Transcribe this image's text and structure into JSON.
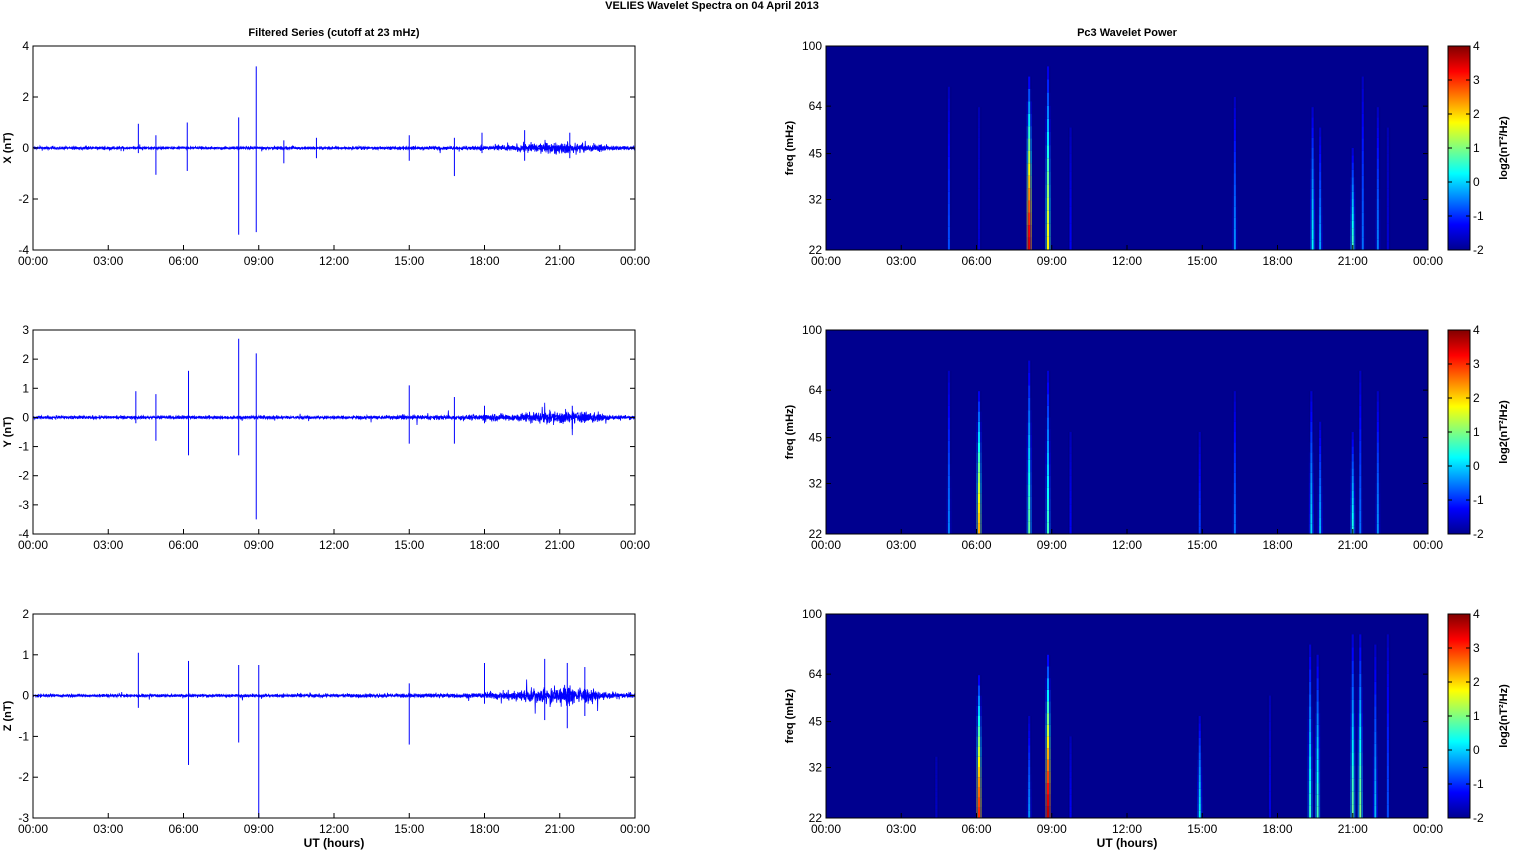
{
  "figure": {
    "title": "VELIES Wavelet Spectra on 04 April      2013",
    "left_column_title": "Filtered Series (cutoff at 23 mHz)",
    "right_column_title": "Pc3 Wavelet Power",
    "xlabel": "UT (hours)"
  },
  "colors": {
    "series": "#0000ff",
    "background_power": "#00008f",
    "axes": "#000000"
  },
  "chart_data": [
    {
      "type": "line",
      "title": "Filtered Series (cutoff at 23 mHz)",
      "ylabel": "X (nT)",
      "xlabel": "",
      "x_ticks": [
        "00:00",
        "03:00",
        "06:00",
        "09:00",
        "12:00",
        "15:00",
        "18:00",
        "21:00",
        "00:00"
      ],
      "xlim_hours": [
        0,
        24
      ],
      "ylim": [
        -4,
        4
      ],
      "y_ticks": [
        4,
        2,
        0,
        -2,
        -4
      ],
      "noise_profile": [
        [
          0,
          0.08
        ],
        [
          12,
          0.08
        ],
        [
          17,
          0.1
        ],
        [
          19.2,
          0.18
        ],
        [
          19.8,
          0.3
        ],
        [
          21,
          0.35
        ],
        [
          22.5,
          0.25
        ],
        [
          23,
          0.12
        ],
        [
          24,
          0.1
        ]
      ],
      "spikes": [
        [
          4.2,
          0.95,
          -0.2
        ],
        [
          4.9,
          0.5,
          -1.05
        ],
        [
          6.15,
          1.0,
          -0.9
        ],
        [
          8.2,
          1.2,
          -3.4
        ],
        [
          8.9,
          3.2,
          -3.3
        ],
        [
          10,
          0.3,
          -0.6
        ],
        [
          11.3,
          0.4,
          -0.4
        ],
        [
          15,
          0.5,
          -0.5
        ],
        [
          16.8,
          0.4,
          -1.1
        ],
        [
          17.9,
          0.6,
          -0.2
        ],
        [
          19.6,
          0.7,
          -0.5
        ],
        [
          21.4,
          0.6,
          -0.4
        ]
      ]
    },
    {
      "type": "line",
      "ylabel": "Y (nT)",
      "xlabel": "",
      "x_ticks": [
        "00:00",
        "03:00",
        "06:00",
        "09:00",
        "12:00",
        "15:00",
        "18:00",
        "21:00",
        "00:00"
      ],
      "xlim_hours": [
        0,
        24
      ],
      "ylim": [
        -4,
        3
      ],
      "y_ticks": [
        3,
        2,
        1,
        0,
        -1,
        -2,
        -3,
        -4
      ],
      "noise_profile": [
        [
          0,
          0.08
        ],
        [
          12,
          0.08
        ],
        [
          17,
          0.12
        ],
        [
          19.5,
          0.22
        ],
        [
          21,
          0.35
        ],
        [
          22.5,
          0.28
        ],
        [
          23,
          0.12
        ],
        [
          24,
          0.1
        ]
      ],
      "spikes": [
        [
          4.1,
          0.9,
          -0.2
        ],
        [
          4.9,
          0.8,
          -0.8
        ],
        [
          6.2,
          1.6,
          -1.3
        ],
        [
          8.2,
          2.7,
          -1.3
        ],
        [
          8.9,
          2.2,
          -3.5
        ],
        [
          15,
          1.1,
          -0.9
        ],
        [
          16.8,
          0.7,
          -0.9
        ],
        [
          18,
          0.4,
          -0.2
        ],
        [
          21.5,
          0.4,
          -0.4
        ]
      ]
    },
    {
      "type": "line",
      "ylabel": "Z (nT)",
      "xlabel": "UT (hours)",
      "x_ticks": [
        "00:00",
        "03:00",
        "06:00",
        "09:00",
        "12:00",
        "15:00",
        "18:00",
        "21:00",
        "00:00"
      ],
      "xlim_hours": [
        0,
        24
      ],
      "ylim": [
        -3,
        2
      ],
      "y_ticks": [
        2,
        1,
        0,
        -1,
        -2,
        -3
      ],
      "noise_profile": [
        [
          0,
          0.05
        ],
        [
          1,
          0.05
        ],
        [
          12,
          0.06
        ],
        [
          17,
          0.08
        ],
        [
          18.5,
          0.12
        ],
        [
          19.6,
          0.25
        ],
        [
          21,
          0.35
        ],
        [
          22,
          0.3
        ],
        [
          22.8,
          0.15
        ],
        [
          24,
          0.07
        ]
      ],
      "spikes": [
        [
          4.2,
          1.05,
          -0.3
        ],
        [
          6.2,
          0.85,
          -1.7
        ],
        [
          8.2,
          0.75,
          -1.15
        ],
        [
          9,
          0.75,
          -3.0
        ],
        [
          15,
          0.3,
          -1.2
        ],
        [
          18,
          0.8,
          -0.2
        ],
        [
          20.4,
          0.9,
          -0.6
        ],
        [
          21.3,
          0.8,
          -0.8
        ],
        [
          22,
          0.7,
          -0.5
        ]
      ]
    },
    {
      "type": "heatmap",
      "title": "Pc3 Wavelet Power",
      "ylabel": "freq (mHz)",
      "xlabel": "",
      "x_ticks": [
        "00:00",
        "03:00",
        "06:00",
        "09:00",
        "12:00",
        "15:00",
        "18:00",
        "21:00",
        "00:00"
      ],
      "xlim_hours": [
        0,
        24
      ],
      "y_ticks": [
        "100",
        "64",
        "45",
        "32",
        "22"
      ],
      "colorbar_label": "log2(nT²/Hz)",
      "colorbar_ticks": [
        4,
        3,
        2,
        1,
        0,
        -1,
        -2
      ],
      "clim": [
        -2,
        4
      ],
      "streaks": [
        [
          4.9,
          0.8,
          -0.8
        ],
        [
          6.1,
          0.7,
          -1.5
        ],
        [
          8.1,
          0.85,
          3.4
        ],
        [
          8.85,
          0.9,
          1.8
        ],
        [
          9.75,
          0.6,
          -1.3
        ],
        [
          16.3,
          0.75,
          -0.4
        ],
        [
          19.4,
          0.7,
          0.2
        ],
        [
          19.7,
          0.6,
          -0.3
        ],
        [
          21.0,
          0.5,
          0.6
        ],
        [
          21.4,
          0.85,
          -0.6
        ],
        [
          22.0,
          0.7,
          -0.5
        ],
        [
          22.4,
          0.6,
          -1.5
        ]
      ]
    },
    {
      "type": "heatmap",
      "ylabel": "freq (mHz)",
      "xlabel": "",
      "x_ticks": [
        "00:00",
        "03:00",
        "06:00",
        "09:00",
        "12:00",
        "15:00",
        "18:00",
        "21:00",
        "00:00"
      ],
      "xlim_hours": [
        0,
        24
      ],
      "y_ticks": [
        "100",
        "64",
        "45",
        "32",
        "22"
      ],
      "colorbar_label": "log2(nT²/Hz)",
      "colorbar_ticks": [
        4,
        3,
        2,
        1,
        0,
        -1,
        -2
      ],
      "clim": [
        -2,
        4
      ],
      "streaks": [
        [
          4.9,
          0.8,
          -0.5
        ],
        [
          6.1,
          0.7,
          2.2
        ],
        [
          8.1,
          0.85,
          0.8
        ],
        [
          8.85,
          0.8,
          0.6
        ],
        [
          9.75,
          0.5,
          -1.3
        ],
        [
          14.9,
          0.5,
          -0.9
        ],
        [
          16.3,
          0.7,
          -0.6
        ],
        [
          19.35,
          0.7,
          0.0
        ],
        [
          19.7,
          0.55,
          -0.2
        ],
        [
          21.0,
          0.5,
          0.4
        ],
        [
          21.3,
          0.8,
          -0.6
        ],
        [
          22.0,
          0.7,
          -0.4
        ]
      ]
    },
    {
      "type": "heatmap",
      "ylabel": "freq (mHz)",
      "xlabel": "UT (hours)",
      "x_ticks": [
        "00:00",
        "03:00",
        "06:00",
        "09:00",
        "12:00",
        "15:00",
        "18:00",
        "21:00",
        "00:00"
      ],
      "xlim_hours": [
        0,
        24
      ],
      "y_ticks": [
        "100",
        "64",
        "45",
        "32",
        "22"
      ],
      "colorbar_label": "log2(nT²/Hz)",
      "colorbar_ticks": [
        4,
        3,
        2,
        1,
        0,
        -1,
        -2
      ],
      "clim": [
        -2,
        4
      ],
      "streaks": [
        [
          4.4,
          0.3,
          -1.6
        ],
        [
          6.1,
          0.7,
          3.0
        ],
        [
          8.1,
          0.5,
          -0.4
        ],
        [
          8.85,
          0.8,
          3.6
        ],
        [
          9.75,
          0.4,
          -1.3
        ],
        [
          14.9,
          0.5,
          0.2
        ],
        [
          17.7,
          0.6,
          -1.4
        ],
        [
          19.3,
          0.85,
          0.5
        ],
        [
          19.6,
          0.8,
          0.6
        ],
        [
          21.0,
          0.9,
          0.8
        ],
        [
          21.3,
          0.9,
          1.0
        ],
        [
          21.9,
          0.85,
          -0.2
        ],
        [
          22.4,
          0.9,
          -0.8
        ]
      ]
    }
  ]
}
